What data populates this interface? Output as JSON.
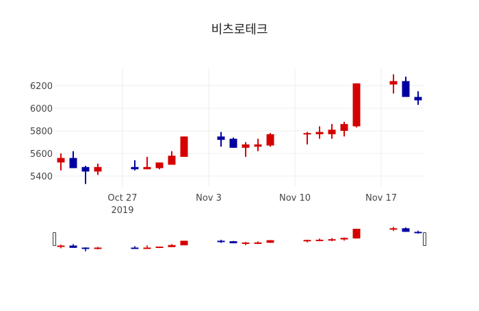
{
  "chart_data": {
    "type": "candlestick",
    "title": "비츠로테크",
    "xlabel": "",
    "ylabel": "",
    "ylim": [
      5300,
      6350
    ],
    "grid": true,
    "rangeslider": true,
    "increasing_color": "#d50000",
    "decreasing_color": "#0000a0",
    "yticks": [
      5400,
      5600,
      5800,
      6000,
      6200
    ],
    "xticks": [
      {
        "date": "2019-10-27",
        "label": "Oct 27",
        "sub": "2019"
      },
      {
        "date": "2019-11-03",
        "label": "Nov 3",
        "sub": ""
      },
      {
        "date": "2019-11-10",
        "label": "Nov 10",
        "sub": ""
      },
      {
        "date": "2019-11-17",
        "label": "Nov 17",
        "sub": ""
      }
    ],
    "candles": [
      {
        "date": "2019-10-22",
        "open": 5520,
        "high": 5600,
        "low": 5450,
        "close": 5560
      },
      {
        "date": "2019-10-23",
        "open": 5560,
        "high": 5620,
        "low": 5470,
        "close": 5470
      },
      {
        "date": "2019-10-24",
        "open": 5480,
        "high": 5490,
        "low": 5330,
        "close": 5440
      },
      {
        "date": "2019-10-25",
        "open": 5440,
        "high": 5510,
        "low": 5410,
        "close": 5480
      },
      {
        "date": "2019-10-28",
        "open": 5480,
        "high": 5540,
        "low": 5450,
        "close": 5460
      },
      {
        "date": "2019-10-29",
        "open": 5460,
        "high": 5570,
        "low": 5460,
        "close": 5480
      },
      {
        "date": "2019-10-30",
        "open": 5470,
        "high": 5520,
        "low": 5460,
        "close": 5520
      },
      {
        "date": "2019-10-31",
        "open": 5500,
        "high": 5620,
        "low": 5500,
        "close": 5580
      },
      {
        "date": "2019-11-01",
        "open": 5570,
        "high": 5750,
        "low": 5570,
        "close": 5750
      },
      {
        "date": "2019-11-04",
        "open": 5750,
        "high": 5790,
        "low": 5660,
        "close": 5720
      },
      {
        "date": "2019-11-05",
        "open": 5730,
        "high": 5740,
        "low": 5650,
        "close": 5650
      },
      {
        "date": "2019-11-06",
        "open": 5650,
        "high": 5700,
        "low": 5570,
        "close": 5680
      },
      {
        "date": "2019-11-07",
        "open": 5660,
        "high": 5730,
        "low": 5620,
        "close": 5680
      },
      {
        "date": "2019-11-08",
        "open": 5670,
        "high": 5780,
        "low": 5660,
        "close": 5770
      },
      {
        "date": "2019-11-11",
        "open": 5770,
        "high": 5790,
        "low": 5680,
        "close": 5780
      },
      {
        "date": "2019-11-12",
        "open": 5770,
        "high": 5840,
        "low": 5730,
        "close": 5790
      },
      {
        "date": "2019-11-13",
        "open": 5770,
        "high": 5860,
        "low": 5730,
        "close": 5810
      },
      {
        "date": "2019-11-14",
        "open": 5800,
        "high": 5880,
        "low": 5750,
        "close": 5860
      },
      {
        "date": "2019-11-15",
        "open": 5840,
        "high": 6220,
        "low": 5830,
        "close": 6220
      },
      {
        "date": "2019-11-18",
        "open": 6210,
        "high": 6300,
        "low": 6130,
        "close": 6240
      },
      {
        "date": "2019-11-19",
        "open": 6240,
        "high": 6280,
        "low": 6100,
        "close": 6100
      },
      {
        "date": "2019-11-20",
        "open": 6100,
        "high": 6150,
        "low": 6030,
        "close": 6070
      }
    ]
  }
}
